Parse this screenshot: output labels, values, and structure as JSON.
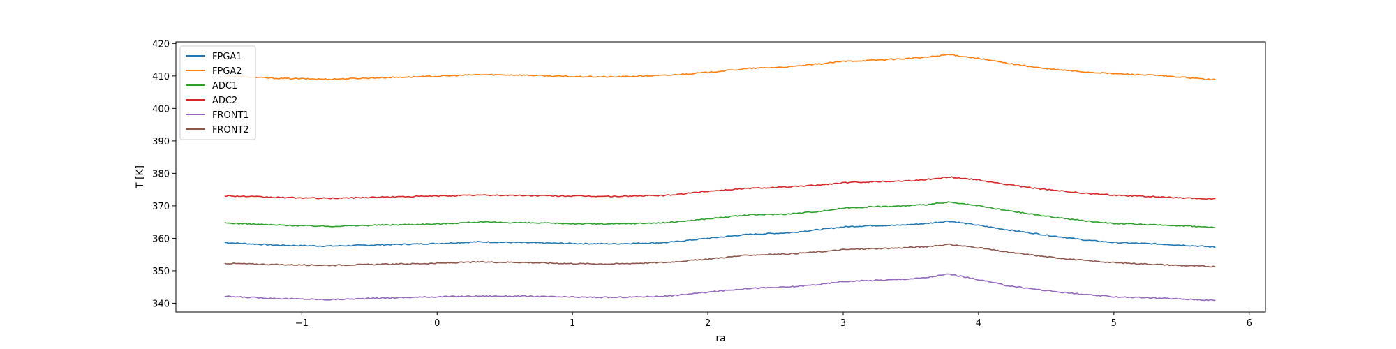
{
  "chart_data": {
    "type": "line",
    "title": "",
    "xlabel": "ra",
    "ylabel": "T [K]",
    "xlim": [
      -1.93,
      6.12
    ],
    "ylim": [
      337.3,
      420.5
    ],
    "xticks": [
      -1,
      0,
      1,
      2,
      3,
      4,
      5,
      6
    ],
    "yticks": [
      340,
      350,
      360,
      370,
      380,
      390,
      400,
      410,
      420
    ],
    "grid": false,
    "legend": "upper-left",
    "x": [
      -1.57,
      -1.2,
      -0.8,
      -0.4,
      0.0,
      0.3,
      0.6,
      1.0,
      1.3,
      1.7,
      2.0,
      2.3,
      2.6,
      2.85,
      3.0,
      3.2,
      3.4,
      3.6,
      3.78,
      4.0,
      4.2,
      4.5,
      4.8,
      5.0,
      5.3,
      5.5,
      5.75
    ],
    "series": [
      {
        "name": "FPGA1",
        "color": "#1f77b4",
        "values": [
          358.7,
          357.9,
          357.6,
          358.0,
          358.4,
          358.9,
          358.7,
          358.4,
          358.3,
          358.7,
          360.0,
          361.2,
          361.7,
          362.8,
          363.5,
          363.9,
          364.0,
          364.5,
          365.3,
          364.0,
          362.7,
          361.0,
          359.4,
          358.7,
          358.3,
          357.9,
          357.3
        ]
      },
      {
        "name": "FPGA2",
        "color": "#ff7f0e",
        "values": [
          410.0,
          409.3,
          409.0,
          409.5,
          409.9,
          410.4,
          410.3,
          409.8,
          409.7,
          410.2,
          411.1,
          412.3,
          412.8,
          413.8,
          414.5,
          414.8,
          415.2,
          415.7,
          416.6,
          415.4,
          414.0,
          412.2,
          411.2,
          410.7,
          410.2,
          409.6,
          408.8
        ]
      },
      {
        "name": "ADC1",
        "color": "#2ca02c",
        "values": [
          364.7,
          364.1,
          363.7,
          364.1,
          364.4,
          365.0,
          364.8,
          364.5,
          364.4,
          364.8,
          366.0,
          367.2,
          367.5,
          368.4,
          369.3,
          369.7,
          369.9,
          370.3,
          371.1,
          370.0,
          368.6,
          366.8,
          365.3,
          364.6,
          364.1,
          363.9,
          363.3
        ]
      },
      {
        "name": "ADC2",
        "color": "#d62728",
        "values": [
          373.1,
          372.6,
          372.3,
          372.7,
          373.0,
          373.3,
          373.2,
          373.0,
          372.9,
          373.2,
          374.5,
          375.4,
          375.8,
          376.5,
          377.1,
          377.4,
          377.6,
          378.0,
          378.9,
          378.0,
          376.6,
          375.0,
          373.8,
          373.3,
          372.8,
          372.4,
          372.1
        ]
      },
      {
        "name": "FRONT1",
        "color": "#9467bd",
        "values": [
          342.1,
          341.5,
          341.1,
          341.6,
          342.0,
          342.2,
          342.2,
          341.9,
          341.8,
          342.2,
          343.4,
          344.6,
          345.0,
          345.9,
          346.7,
          347.0,
          347.3,
          347.8,
          349.0,
          347.3,
          345.5,
          343.9,
          342.6,
          342.0,
          341.6,
          341.3,
          340.9
        ]
      },
      {
        "name": "FRONT2",
        "color": "#8c564b",
        "values": [
          352.3,
          351.9,
          351.7,
          352.0,
          352.3,
          352.7,
          352.6,
          352.2,
          352.1,
          352.6,
          353.6,
          354.8,
          355.2,
          355.9,
          356.5,
          356.8,
          357.0,
          357.4,
          358.1,
          357.1,
          355.8,
          354.3,
          353.1,
          352.5,
          352.0,
          351.6,
          351.3
        ]
      }
    ]
  }
}
